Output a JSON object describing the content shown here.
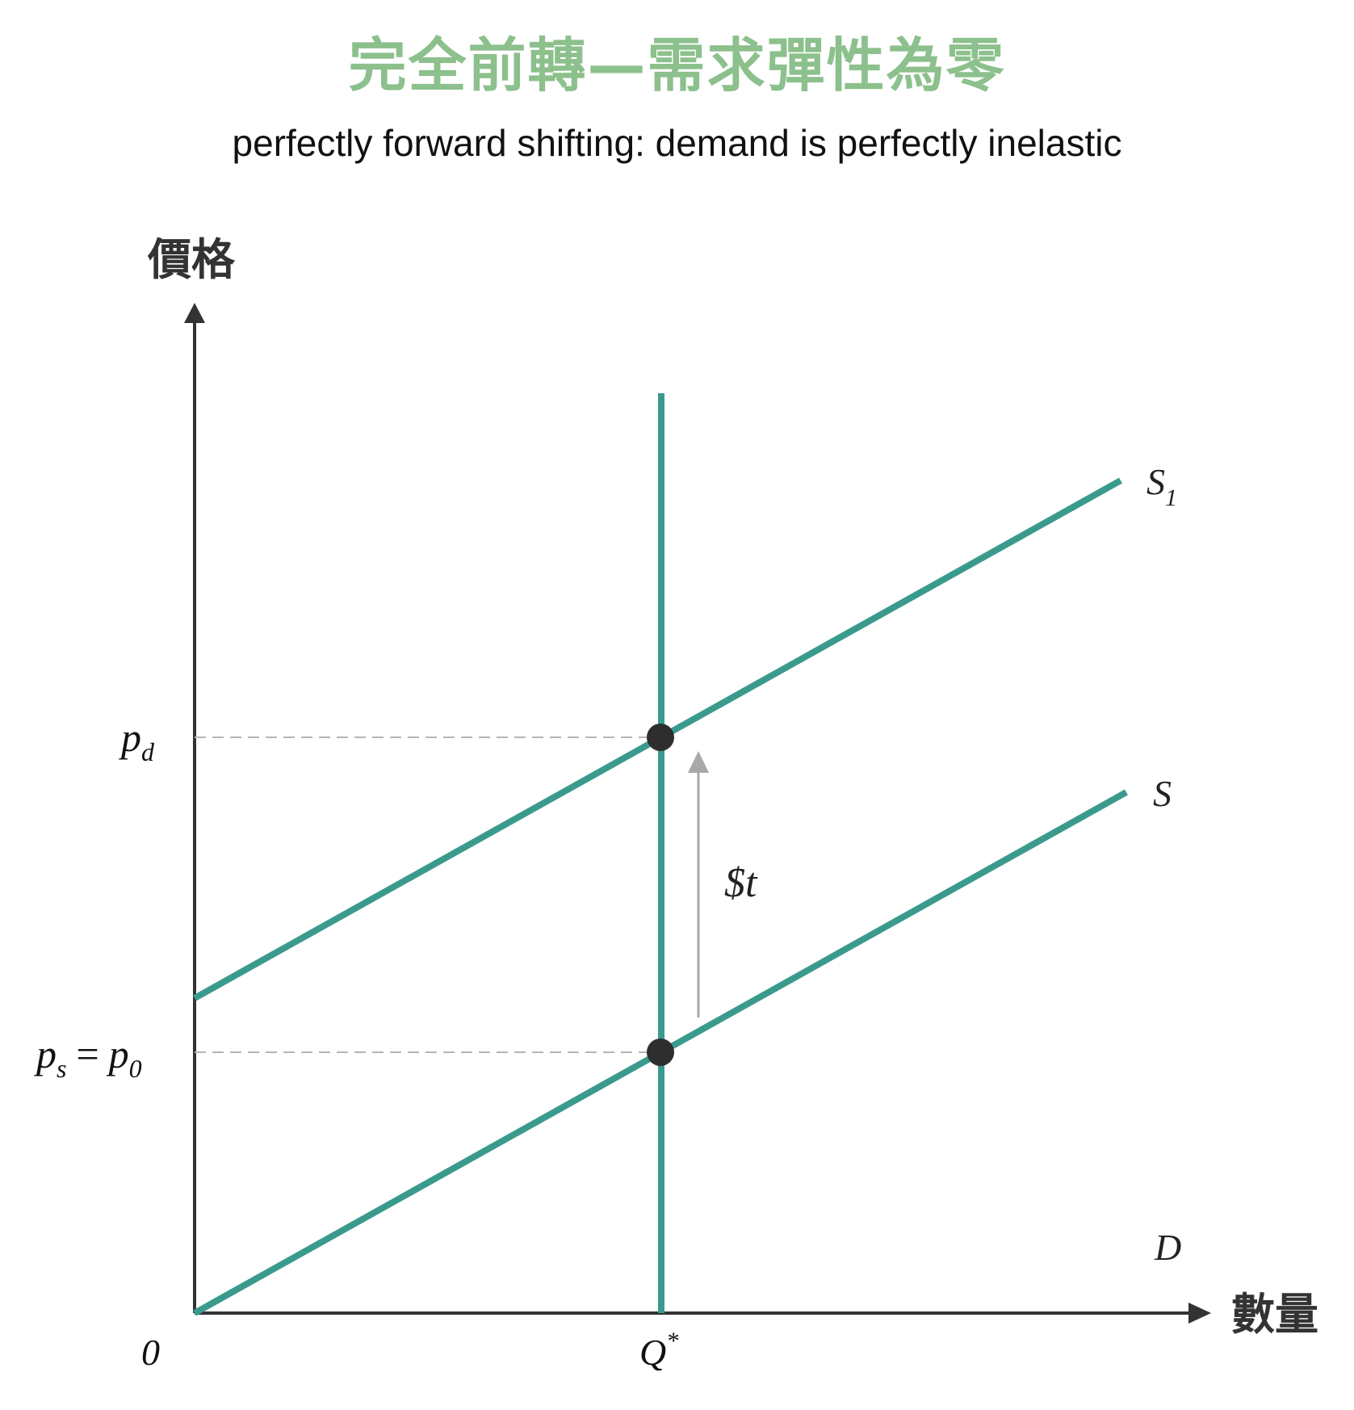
{
  "title": "完全前轉—需求彈性為零",
  "subtitle": "perfectly forward shifting: demand is perfectly inelastic",
  "axes": {
    "y_label": "價格",
    "x_label": "數量",
    "origin_label": "0"
  },
  "curves": {
    "supply_after_tax": {
      "name": "S",
      "subscript": "1"
    },
    "supply": {
      "name": "S"
    },
    "demand": {
      "name": "D"
    }
  },
  "price_labels": {
    "pd": {
      "main": "p",
      "sub": "d"
    },
    "ps": {
      "main": "p",
      "sub": "s"
    },
    "equals": "=",
    "p0": {
      "main": "p",
      "sub": "0"
    }
  },
  "quantity_label": {
    "main": "Q",
    "sup": "*"
  },
  "tax_label": "$t",
  "colors": {
    "title": "#8cc08c",
    "curve": "#3a9a8e",
    "axis": "#333333",
    "dashed": "#b5b5b5",
    "tax_arrow": "#a8a8a8",
    "point": "#2e2e2e"
  }
}
